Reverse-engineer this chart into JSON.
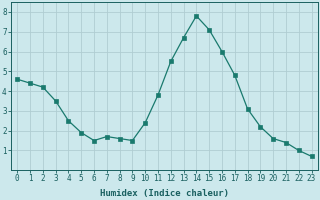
{
  "x": [
    0,
    1,
    2,
    3,
    4,
    5,
    6,
    7,
    8,
    9,
    10,
    11,
    12,
    13,
    14,
    15,
    16,
    17,
    18,
    19,
    20,
    21,
    22,
    23
  ],
  "y": [
    4.6,
    4.4,
    4.2,
    3.5,
    2.5,
    1.9,
    1.5,
    1.7,
    1.6,
    1.5,
    2.4,
    3.8,
    5.5,
    6.7,
    7.8,
    7.1,
    6.0,
    4.8,
    3.1,
    2.2,
    1.6,
    1.4,
    1.0,
    0.7
  ],
  "line_color": "#1a7a6e",
  "marker": "s",
  "marker_size": 2.5,
  "bg_color": "#cce8ec",
  "grid_color": "#b0cdd2",
  "axis_color": "#1a6060",
  "xlabel": "Humidex (Indice chaleur)",
  "xlim": [
    -0.5,
    23.5
  ],
  "ylim": [
    0,
    8.5
  ],
  "yticks": [
    1,
    2,
    3,
    4,
    5,
    6,
    7,
    8
  ],
  "xticks": [
    0,
    1,
    2,
    3,
    4,
    5,
    6,
    7,
    8,
    9,
    10,
    11,
    12,
    13,
    14,
    15,
    16,
    17,
    18,
    19,
    20,
    21,
    22,
    23
  ],
  "tick_fontsize": 5.5,
  "xlabel_fontsize": 6.5
}
